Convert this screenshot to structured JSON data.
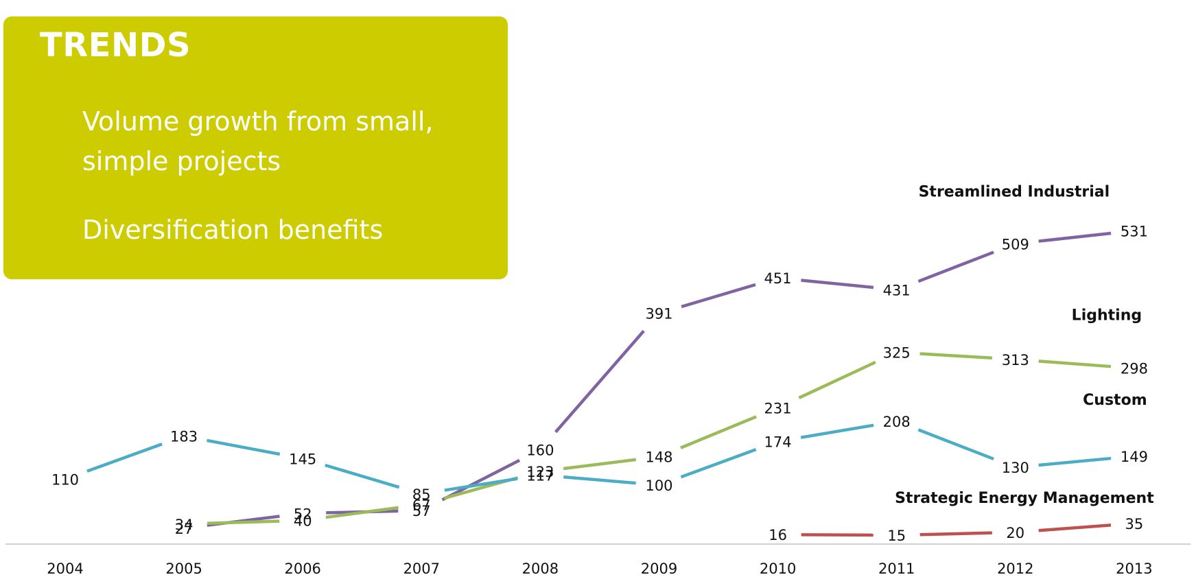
{
  "panel": {
    "title": "TRENDS",
    "items": [
      "Volume growth from small, simple projects",
      "Diversification benefits"
    ],
    "background": "#cccc00",
    "text_color": "#ffffff"
  },
  "chart_data": {
    "type": "line",
    "x": [
      "2004",
      "2005",
      "2006",
      "2007",
      "2008",
      "2009",
      "2010",
      "2011",
      "2012",
      "2013"
    ],
    "ylim": [
      0,
      560
    ],
    "grid": false,
    "legend": "none (series names printed next to line ends)",
    "series": [
      {
        "name": "Streamlined Industrial",
        "color": "#8064a2",
        "values": [
          null,
          27,
          52,
          57,
          160,
          391,
          451,
          431,
          509,
          531
        ]
      },
      {
        "name": "Lighting",
        "color": "#9bbb59",
        "values": [
          null,
          34,
          40,
          67,
          123,
          148,
          231,
          325,
          313,
          298
        ]
      },
      {
        "name": "Custom",
        "color": "#4bacc6",
        "values": [
          110,
          183,
          145,
          85,
          117,
          100,
          174,
          208,
          130,
          149
        ]
      },
      {
        "name": "Strategic Energy Management",
        "color": "#c0504d",
        "values": [
          null,
          null,
          null,
          null,
          null,
          null,
          16,
          15,
          20,
          35
        ]
      }
    ]
  }
}
